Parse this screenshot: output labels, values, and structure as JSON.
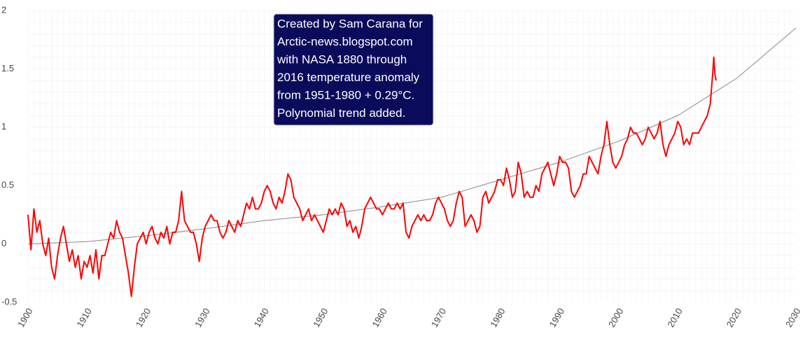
{
  "chart_data": {
    "type": "line",
    "annotation": [
      "Created by Sam Carana for",
      "Arctic-news.blogspot.com",
      "with NASA 1880 through",
      "2016 temperature anomaly",
      "from 1951-1980 + 0.29°C.",
      "Polynomial trend added."
    ],
    "xlim": [
      1900,
      2030
    ],
    "xticks": [
      1900,
      1910,
      1920,
      1930,
      1940,
      1950,
      1960,
      1970,
      1980,
      1990,
      2000,
      2010,
      2020,
      2030
    ],
    "ylim": [
      -0.5,
      2
    ],
    "yticks": [
      -0.5,
      0,
      0.5,
      1,
      1.5,
      2
    ],
    "grid": true,
    "series": [
      {
        "color": "#ff0000",
        "x": [
          1900,
          1900.5,
          1901,
          1901.5,
          1902,
          1902.5,
          1903,
          1903.5,
          1904,
          1904.5,
          1905,
          1905.5,
          1906,
          1906.5,
          1907,
          1907.5,
          1908,
          1908.5,
          1909,
          1909.5,
          1910,
          1910.5,
          1911,
          1911.5,
          1912,
          1912.5,
          1913,
          1913.5,
          1914,
          1914.5,
          1915,
          1915.5,
          1916,
          1916.5,
          1917,
          1917.5,
          1918,
          1918.5,
          1919,
          1919.5,
          1920,
          1920.5,
          1921,
          1921.5,
          1922,
          1922.5,
          1923,
          1923.5,
          1924,
          1924.5,
          1925,
          1925.5,
          1926,
          1926.5,
          1927,
          1927.5,
          1928,
          1928.5,
          1929,
          1929.5,
          1930,
          1930.5,
          1931,
          1931.5,
          1932,
          1932.5,
          1933,
          1933.5,
          1934,
          1934.5,
          1935,
          1935.5,
          1936,
          1936.5,
          1937,
          1937.5,
          1938,
          1938.5,
          1939,
          1939.5,
          1940,
          1940.5,
          1941,
          1941.5,
          1942,
          1942.5,
          1943,
          1943.5,
          1944,
          1944.5,
          1945,
          1945.5,
          1946,
          1946.5,
          1947,
          1947.5,
          1948,
          1948.5,
          1949,
          1949.5,
          1950,
          1950.5,
          1951,
          1951.5,
          1952,
          1952.5,
          1953,
          1953.5,
          1954,
          1954.5,
          1955,
          1955.5,
          1956,
          1956.5,
          1957,
          1957.5,
          1958,
          1958.5,
          1959,
          1959.5,
          1960,
          1960.5,
          1961,
          1961.5,
          1962,
          1962.5,
          1963,
          1963.5,
          1964,
          1964.5,
          1965,
          1965.5,
          1966,
          1966.5,
          1967,
          1967.5,
          1968,
          1968.5,
          1969,
          1969.5,
          1970,
          1970.5,
          1971,
          1971.5,
          1972,
          1972.5,
          1973,
          1973.5,
          1974,
          1974.5,
          1975,
          1975.5,
          1976,
          1976.5,
          1977,
          1977.5,
          1978,
          1978.5,
          1979,
          1979.5,
          1980,
          1980.5,
          1981,
          1981.5,
          1982,
          1982.5,
          1983,
          1983.5,
          1984,
          1984.5,
          1985,
          1985.5,
          1986,
          1986.5,
          1987,
          1987.5,
          1988,
          1988.5,
          1989,
          1989.5,
          1990,
          1990.5,
          1991,
          1991.5,
          1992,
          1992.5,
          1993,
          1993.5,
          1994,
          1994.5,
          1995,
          1995.5,
          1996,
          1996.5,
          1997,
          1997.5,
          1998,
          1998.5,
          1999,
          1999.5,
          2000,
          2000.5,
          2001,
          2001.5,
          2002,
          2002.5,
          2003,
          2003.5,
          2004,
          2004.5,
          2005,
          2005.5,
          2006,
          2006.5,
          2007,
          2007.5,
          2008,
          2008.5,
          2009,
          2009.5,
          2010,
          2010.5,
          2011,
          2011.5,
          2012,
          2012.5,
          2013,
          2013.5,
          2014,
          2014.5,
          2015,
          2015.5,
          2015.9,
          2016.1,
          2016.3,
          2016.5
        ],
        "values": [
          0.25,
          -0.05,
          0.3,
          0.1,
          0.2,
          0.0,
          -0.1,
          0.05,
          -0.2,
          -0.3,
          -0.1,
          0.05,
          0.15,
          0.0,
          -0.15,
          -0.05,
          -0.2,
          -0.1,
          -0.3,
          -0.15,
          -0.2,
          -0.1,
          -0.25,
          -0.05,
          -0.3,
          -0.1,
          -0.1,
          0.0,
          0.1,
          0.05,
          0.2,
          0.1,
          0.05,
          -0.1,
          -0.25,
          -0.45,
          -0.2,
          0.0,
          0.05,
          0.1,
          0.0,
          0.1,
          0.15,
          0.05,
          0.0,
          0.1,
          0.05,
          0.15,
          0.0,
          0.1,
          0.1,
          0.2,
          0.45,
          0.2,
          0.15,
          0.1,
          0.1,
          0.0,
          -0.15,
          0.05,
          0.15,
          0.2,
          0.25,
          0.2,
          0.2,
          0.1,
          0.05,
          0.1,
          0.2,
          0.15,
          0.1,
          0.2,
          0.15,
          0.25,
          0.35,
          0.3,
          0.4,
          0.3,
          0.3,
          0.35,
          0.45,
          0.5,
          0.45,
          0.35,
          0.3,
          0.4,
          0.35,
          0.45,
          0.6,
          0.55,
          0.4,
          0.35,
          0.3,
          0.2,
          0.25,
          0.3,
          0.2,
          0.25,
          0.2,
          0.15,
          0.1,
          0.2,
          0.3,
          0.25,
          0.3,
          0.25,
          0.35,
          0.3,
          0.15,
          0.2,
          0.1,
          0.15,
          0.05,
          0.15,
          0.3,
          0.35,
          0.4,
          0.35,
          0.3,
          0.3,
          0.25,
          0.3,
          0.35,
          0.3,
          0.3,
          0.35,
          0.3,
          0.35,
          0.1,
          0.05,
          0.15,
          0.2,
          0.25,
          0.2,
          0.25,
          0.2,
          0.2,
          0.25,
          0.35,
          0.4,
          0.35,
          0.3,
          0.2,
          0.15,
          0.2,
          0.35,
          0.45,
          0.4,
          0.15,
          0.2,
          0.25,
          0.2,
          0.1,
          0.15,
          0.4,
          0.45,
          0.35,
          0.4,
          0.45,
          0.55,
          0.55,
          0.5,
          0.65,
          0.55,
          0.4,
          0.45,
          0.7,
          0.6,
          0.4,
          0.45,
          0.4,
          0.4,
          0.5,
          0.45,
          0.6,
          0.65,
          0.7,
          0.6,
          0.5,
          0.6,
          0.75,
          0.7,
          0.7,
          0.65,
          0.45,
          0.4,
          0.45,
          0.5,
          0.6,
          0.6,
          0.75,
          0.7,
          0.65,
          0.6,
          0.75,
          0.85,
          1.05,
          0.85,
          0.7,
          0.65,
          0.7,
          0.75,
          0.85,
          0.9,
          1.0,
          0.95,
          0.95,
          0.9,
          0.85,
          0.9,
          1.0,
          0.95,
          0.9,
          0.95,
          1.05,
          0.85,
          0.75,
          0.85,
          0.9,
          0.95,
          1.05,
          1.0,
          0.85,
          0.9,
          0.85,
          0.95,
          0.95,
          0.95,
          1.0,
          1.05,
          1.1,
          1.2,
          1.45,
          1.6,
          1.45,
          1.4
        ]
      },
      {
        "color": "#888888",
        "x": [
          1900,
          1910,
          1920,
          1930,
          1940,
          1950,
          1960,
          1970,
          1980,
          1990,
          2000,
          2010,
          2020,
          2030
        ],
        "values": [
          0.0,
          0.02,
          0.07,
          0.13,
          0.2,
          0.25,
          0.32,
          0.4,
          0.55,
          0.7,
          0.88,
          1.1,
          1.42,
          1.85
        ]
      }
    ]
  }
}
